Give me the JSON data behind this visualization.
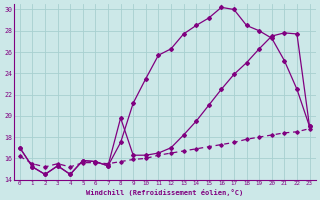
{
  "xlabel": "Windchill (Refroidissement éolien,°C)",
  "bg_color": "#cce8e8",
  "line_color": "#800080",
  "grid_color": "#a8d0d0",
  "xlim": [
    -0.5,
    23.5
  ],
  "ylim": [
    14,
    30.5
  ],
  "yticks": [
    14,
    16,
    18,
    20,
    22,
    24,
    26,
    28,
    30
  ],
  "xticks": [
    0,
    1,
    2,
    3,
    4,
    5,
    6,
    7,
    8,
    9,
    10,
    11,
    12,
    13,
    14,
    15,
    16,
    17,
    18,
    19,
    20,
    21,
    22,
    23
  ],
  "curve1_x": [
    0,
    1,
    2,
    3,
    4,
    5,
    6,
    7,
    8,
    9,
    10,
    11,
    12,
    13,
    14,
    15,
    16,
    17,
    18,
    19,
    20,
    21,
    22,
    23
  ],
  "curve1_y": [
    17.0,
    15.2,
    14.5,
    15.3,
    14.5,
    15.8,
    15.7,
    15.3,
    17.5,
    21.2,
    23.5,
    25.7,
    26.3,
    27.7,
    28.5,
    29.2,
    30.2,
    30.0,
    28.5,
    28.0,
    27.3,
    25.2,
    22.5,
    19.0
  ],
  "curve2_x": [
    0,
    1,
    2,
    3,
    4,
    5,
    6,
    7,
    8,
    9,
    10,
    11,
    12,
    13,
    14,
    15,
    16,
    17,
    18,
    19,
    20,
    21,
    22,
    23
  ],
  "curve2_y": [
    17.0,
    15.2,
    14.5,
    15.3,
    14.5,
    15.8,
    15.7,
    15.3,
    19.8,
    16.3,
    16.3,
    16.5,
    17.0,
    18.2,
    19.5,
    21.0,
    22.5,
    23.9,
    25.0,
    26.3,
    27.5,
    27.8,
    27.7,
    19.0
  ],
  "curve3_x": [
    0,
    1,
    2,
    3,
    4,
    5,
    6,
    7,
    8,
    9,
    10,
    11,
    12,
    13,
    14,
    15,
    16,
    17,
    18,
    19,
    20,
    21,
    22,
    23
  ],
  "curve3_y": [
    16.2,
    15.5,
    15.2,
    15.5,
    15.2,
    15.6,
    15.6,
    15.5,
    15.7,
    15.9,
    16.0,
    16.3,
    16.5,
    16.7,
    16.9,
    17.1,
    17.3,
    17.5,
    17.8,
    18.0,
    18.2,
    18.4,
    18.5,
    18.8
  ]
}
